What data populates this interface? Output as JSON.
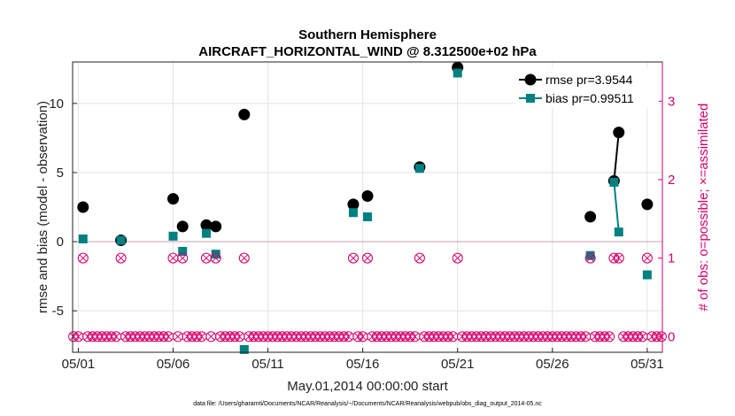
{
  "chart_data": {
    "type": "scatter",
    "title": "Southern Hemisphere",
    "subtitle": "AIRCRAFT_HORIZONTAL_WIND @ 8.312500e+02 hPa",
    "xlabel": "May.01,2014 00:00:00 start",
    "ylabel": "rmse and bias (model - observation)",
    "ylabel_right": "# of obs: o=possible; ×=assimilated",
    "footer": "data file: /Users/gharamti/Documents/NCAR/Reanalysis/~/Documents/NCAR/Reanalysis/webpub/obs_diag_output_2014-05.nc",
    "xlim": [
      0.7,
      31.8
    ],
    "ylim": [
      -8,
      13
    ],
    "ylim_right": [
      -0.2,
      3.5
    ],
    "x_ticks": [
      1,
      6,
      11,
      16,
      21,
      26,
      31
    ],
    "x_tick_labels": [
      "05/01",
      "05/06",
      "05/11",
      "05/16",
      "05/21",
      "05/26",
      "05/31"
    ],
    "y_ticks": [
      -5,
      0,
      5,
      10
    ],
    "y_tick_labels": [
      "-5",
      "0",
      "5",
      "10"
    ],
    "y_ticks_right": [
      0,
      1,
      2,
      3
    ],
    "y_tick_labels_right": [
      "0",
      "1",
      "2",
      "3"
    ],
    "grid": true,
    "legend": "top-right",
    "series": [
      {
        "name": "rmse pr=3.9544",
        "color": "#000000",
        "marker": "circle",
        "points": [
          [
            1.25,
            2.5
          ],
          [
            3.25,
            0.1
          ],
          [
            6.0,
            3.1
          ],
          [
            6.5,
            1.1
          ],
          [
            7.75,
            1.2
          ],
          [
            8.25,
            1.1
          ],
          [
            9.75,
            9.2
          ],
          [
            15.5,
            2.7
          ],
          [
            16.25,
            3.3
          ],
          [
            19.0,
            5.4
          ],
          [
            21.0,
            12.6
          ],
          [
            28.0,
            1.8
          ],
          [
            29.25,
            4.4
          ],
          [
            29.5,
            7.9
          ],
          [
            31.0,
            2.7
          ]
        ],
        "segments": [
          [
            29.25,
            29.5
          ]
        ]
      },
      {
        "name": "bias pr=0.99511",
        "color": "#008080",
        "marker": "square",
        "points": [
          [
            1.25,
            0.2
          ],
          [
            3.25,
            0.1
          ],
          [
            6.0,
            0.4
          ],
          [
            6.5,
            -0.7
          ],
          [
            7.75,
            0.6
          ],
          [
            8.25,
            -0.9
          ],
          [
            9.75,
            -7.8
          ],
          [
            15.5,
            2.1
          ],
          [
            16.25,
            1.8
          ],
          [
            19.0,
            5.3
          ],
          [
            21.0,
            12.2
          ],
          [
            28.0,
            -1.0
          ],
          [
            29.25,
            4.3
          ],
          [
            29.5,
            0.7
          ],
          [
            31.0,
            -2.4
          ]
        ],
        "segments": [
          [
            29.25,
            29.5
          ]
        ]
      }
    ],
    "obs_possible": {
      "color": "#d6006c",
      "ones": [
        1.25,
        3.25,
        6.0,
        6.5,
        7.75,
        8.25,
        9.75,
        15.5,
        16.25,
        19.0,
        21.0,
        28.0,
        29.25,
        29.5,
        31.0
      ],
      "zero_start": 0.75,
      "zero_end": 31.75,
      "zero_step": 0.25
    },
    "zero_line_color": "#c8a0ad"
  }
}
